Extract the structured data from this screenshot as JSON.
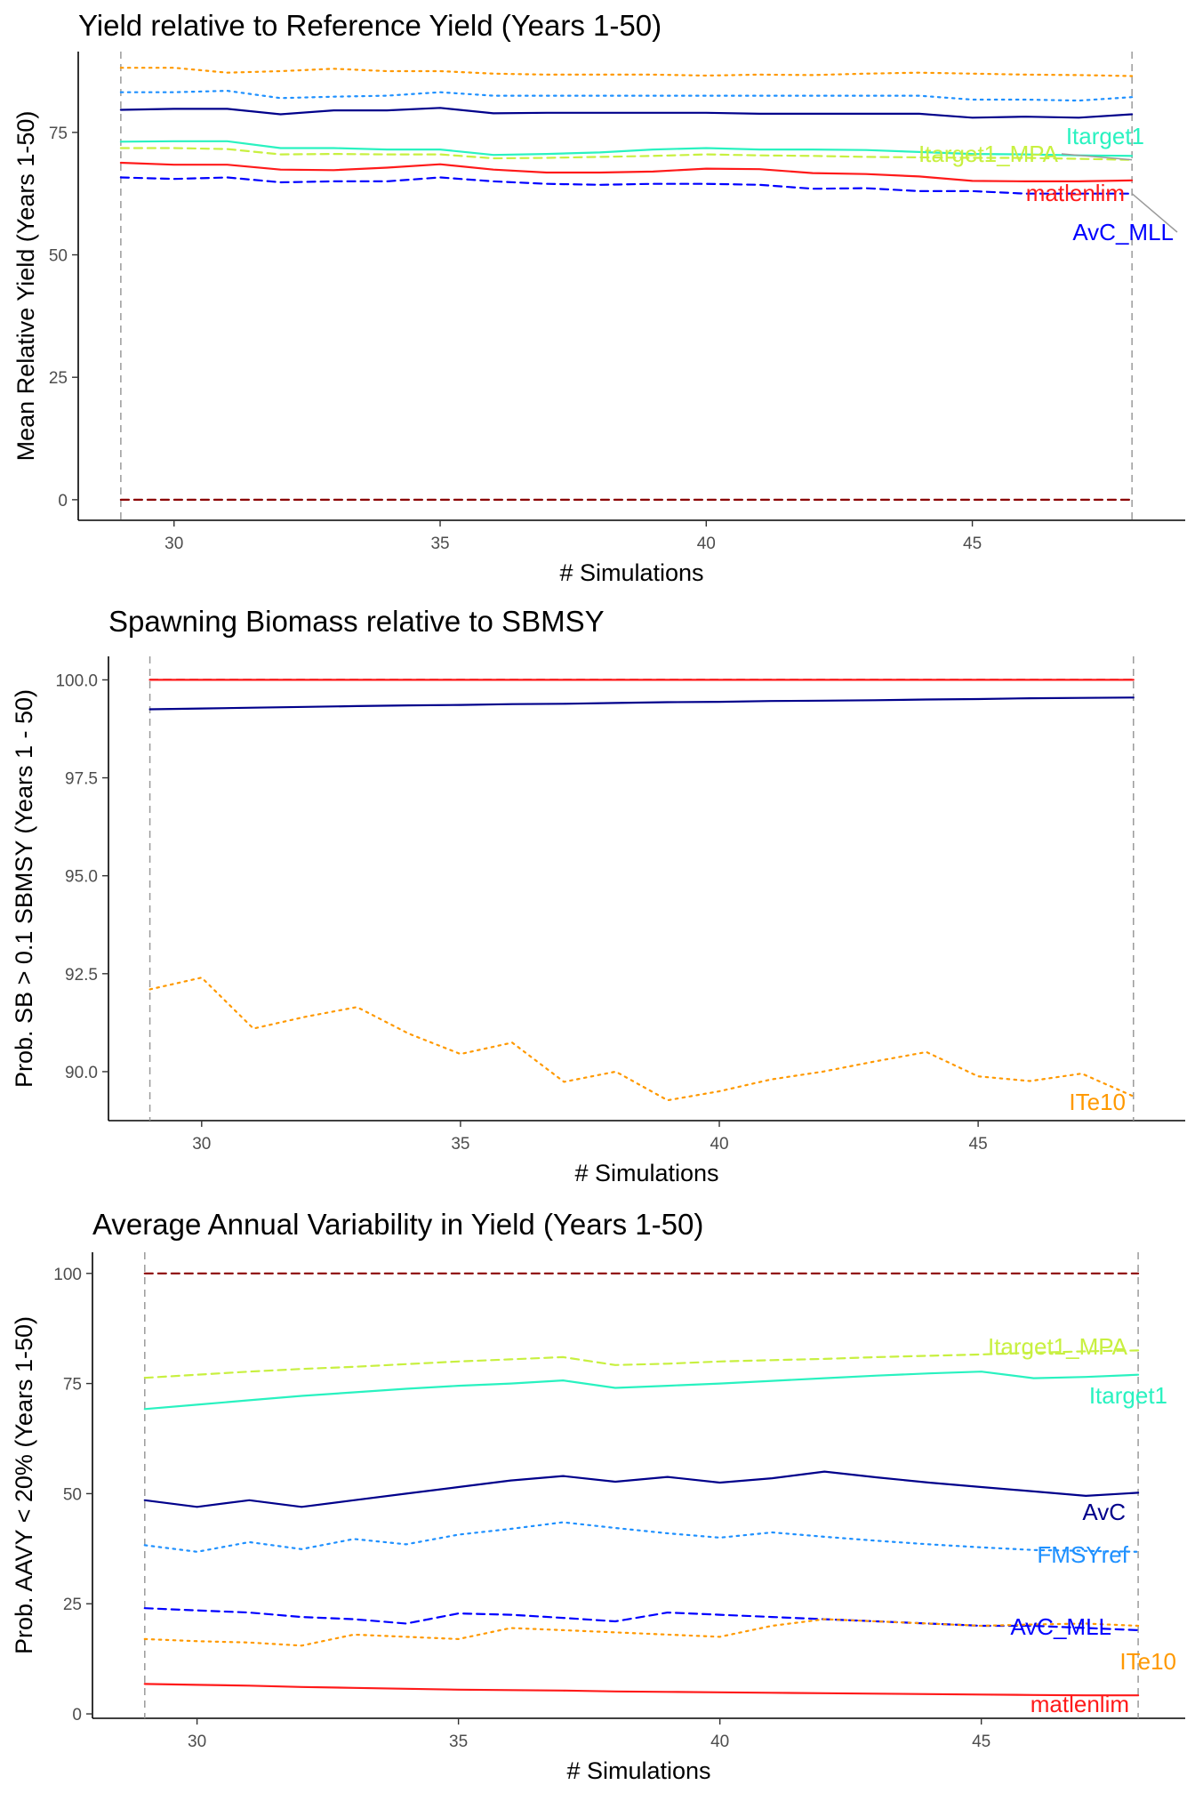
{
  "chart_data": [
    {
      "type": "line",
      "title": "Yield relative to Reference Yield (Years 1-50)",
      "xlabel": "# Simulations",
      "ylabel": "Mean Relative Yield (Years 1-50)",
      "xlim": [
        28.2,
        49.0
      ],
      "ylim": [
        -4.2,
        91.5
      ],
      "xticks": [
        30,
        35,
        40,
        45
      ],
      "yticks": [
        0,
        25,
        50,
        75
      ],
      "vlines": [
        29,
        48
      ],
      "grid": false,
      "legend": "none",
      "x": [
        29,
        30,
        31,
        32,
        33,
        34,
        35,
        36,
        37,
        38,
        39,
        40,
        41,
        42,
        43,
        44,
        45,
        46,
        47,
        48
      ],
      "series": [
        {
          "name": "",
          "color": "#ff9900",
          "dash": "dot",
          "values": [
            88.2,
            88.2,
            87.2,
            87.5,
            88.0,
            87.5,
            87.5,
            87.0,
            86.8,
            86.8,
            86.8,
            86.6,
            86.8,
            86.7,
            87.0,
            87.2,
            87.0,
            86.8,
            86.7,
            86.5
          ]
        },
        {
          "name": "",
          "color": "#1e90ff",
          "dash": "dot",
          "values": [
            83.2,
            83.2,
            83.5,
            82.0,
            82.3,
            82.5,
            83.2,
            82.5,
            82.5,
            82.5,
            82.5,
            82.5,
            82.5,
            82.5,
            82.5,
            82.5,
            81.7,
            81.7,
            81.5,
            82.2
          ]
        },
        {
          "name": "",
          "color": "#00008b",
          "dash": "solid",
          "values": [
            79.6,
            79.8,
            79.8,
            78.7,
            79.5,
            79.5,
            80.0,
            78.9,
            79.0,
            79.0,
            79.0,
            79.0,
            78.8,
            78.8,
            78.8,
            78.8,
            78.0,
            78.2,
            78.0,
            78.7
          ]
        },
        {
          "name": "Itarget1",
          "color": "#29f2c0",
          "dash": "solid",
          "values": [
            73.1,
            73.2,
            73.2,
            71.8,
            71.8,
            71.5,
            71.5,
            70.4,
            70.6,
            70.9,
            71.5,
            71.8,
            71.5,
            71.5,
            71.4,
            71.0,
            70.6,
            70.5,
            70.3,
            70.2
          ]
        },
        {
          "name": "Itarget1_MPA",
          "color": "#c8f040",
          "dash": "dash",
          "values": [
            71.8,
            71.8,
            71.6,
            70.5,
            70.6,
            70.5,
            70.5,
            69.7,
            69.8,
            70.0,
            70.2,
            70.5,
            70.3,
            70.2,
            70.0,
            69.9,
            69.8,
            69.8,
            69.6,
            69.4
          ]
        },
        {
          "name": "matlenlim",
          "color": "#ff1a1a",
          "dash": "solid",
          "values": [
            68.8,
            68.4,
            68.4,
            67.4,
            67.3,
            67.8,
            68.5,
            67.4,
            66.8,
            66.8,
            67.0,
            67.6,
            67.5,
            66.7,
            66.5,
            66.0,
            65.1,
            65.0,
            65.0,
            65.2
          ]
        },
        {
          "name": "AvC_MLL",
          "color": "#0000ff",
          "dash": "dash",
          "values": [
            65.8,
            65.5,
            65.8,
            64.8,
            65.0,
            65.0,
            65.8,
            65.0,
            64.5,
            64.3,
            64.5,
            64.5,
            64.3,
            63.5,
            63.6,
            63.0,
            63.0,
            62.5,
            62.5,
            62.5
          ]
        },
        {
          "name": "",
          "color": "#8b0000",
          "dash": "dash",
          "values": [
            0,
            0,
            0,
            0,
            0,
            0,
            0,
            0,
            0,
            0,
            0,
            0,
            0,
            0,
            0,
            0,
            0,
            0,
            0,
            0
          ]
        }
      ]
    },
    {
      "type": "line",
      "title": "Spawning Biomass relative to SBMSY",
      "xlabel": "# Simulations",
      "ylabel": "Prob. SB > 0.1 SBMSY (Years 1 - 50)",
      "xlim": [
        28.2,
        49.0
      ],
      "ylim": [
        88.75,
        100.6
      ],
      "xticks": [
        30,
        35,
        40,
        45
      ],
      "yticks": [
        90.0,
        92.5,
        95.0,
        97.5,
        100.0
      ],
      "tick_labels": [
        "90.0",
        "92.5",
        "95.0",
        "97.5",
        "100.0"
      ],
      "vlines": [
        29,
        48
      ],
      "grid": false,
      "legend": "none",
      "x": [
        29,
        30,
        31,
        32,
        33,
        34,
        35,
        36,
        37,
        38,
        39,
        40,
        41,
        42,
        43,
        44,
        45,
        46,
        47,
        48
      ],
      "series": [
        {
          "name": "",
          "color": "#8b0000",
          "dash": "dash",
          "values": [
            100,
            100,
            100,
            100,
            100,
            100,
            100,
            100,
            100,
            100,
            100,
            100,
            100,
            100,
            100,
            100,
            100,
            100,
            100,
            100
          ]
        },
        {
          "name": "",
          "color": "#ff1a1a",
          "dash": "solid",
          "values": [
            100,
            100,
            100,
            100,
            100,
            100,
            100,
            100,
            100,
            100,
            100,
            100,
            100,
            100,
            100,
            100,
            100,
            100,
            100,
            100
          ]
        },
        {
          "name": "",
          "color": "#00008b",
          "dash": "solid",
          "values": [
            99.25,
            99.27,
            99.29,
            99.31,
            99.33,
            99.35,
            99.36,
            99.38,
            99.39,
            99.41,
            99.43,
            99.44,
            99.46,
            99.47,
            99.48,
            99.5,
            99.51,
            99.53,
            99.54,
            99.55
          ]
        },
        {
          "name": "ITe10",
          "color": "#ff9900",
          "dash": "dot",
          "values": [
            92.1,
            92.4,
            91.1,
            91.4,
            91.65,
            90.97,
            90.45,
            90.74,
            89.74,
            90.0,
            89.27,
            89.5,
            89.8,
            90.0,
            90.26,
            90.5,
            89.88,
            89.76,
            89.95,
            89.37
          ]
        }
      ]
    },
    {
      "type": "line",
      "title": "Average Annual Variability in Yield (Years 1-50)",
      "xlabel": "# Simulations",
      "ylabel": "Prob. AAVY < 20% (Years 1-50)",
      "xlim": [
        28.0,
        48.9
      ],
      "ylim": [
        -1.0,
        104.8
      ],
      "xticks": [
        30,
        35,
        40,
        45
      ],
      "yticks": [
        0,
        25,
        50,
        75,
        100
      ],
      "vlines": [
        29,
        48
      ],
      "grid": false,
      "legend": "none",
      "x": [
        29,
        30,
        31,
        32,
        33,
        34,
        35,
        36,
        37,
        38,
        39,
        40,
        41,
        42,
        43,
        44,
        45,
        46,
        47,
        48
      ],
      "series": [
        {
          "name": "",
          "color": "#8b0000",
          "dash": "dash",
          "values": [
            100,
            100,
            100,
            100,
            100,
            100,
            100,
            100,
            100,
            100,
            100,
            100,
            100,
            100,
            100,
            100,
            100,
            100,
            100,
            100
          ]
        },
        {
          "name": "Itarget1_MPA",
          "color": "#c8f040",
          "dash": "dash",
          "values": [
            76.3,
            77.0,
            77.7,
            78.3,
            78.8,
            79.4,
            80.0,
            80.5,
            81.0,
            79.2,
            79.5,
            80.0,
            80.3,
            80.6,
            81.0,
            81.3,
            81.6,
            82.0,
            82.3,
            82.5
          ]
        },
        {
          "name": "Itarget1",
          "color": "#29f2c0",
          "dash": "solid",
          "values": [
            69.2,
            70.2,
            71.2,
            72.2,
            73.0,
            73.8,
            74.5,
            75.0,
            75.7,
            74.0,
            74.5,
            75.0,
            75.6,
            76.2,
            76.8,
            77.3,
            77.7,
            76.2,
            76.5,
            77.0
          ]
        },
        {
          "name": "AvC",
          "color": "#00008b",
          "dash": "solid",
          "values": [
            48.5,
            47.0,
            48.5,
            47.0,
            48.5,
            50.0,
            51.5,
            53.0,
            54.0,
            52.7,
            53.8,
            52.5,
            53.5,
            55.0,
            53.7,
            52.5,
            51.5,
            50.5,
            49.5,
            50.2
          ]
        },
        {
          "name": "FMSYref",
          "color": "#1e90ff",
          "dash": "dot",
          "values": [
            38.3,
            36.8,
            39.0,
            37.4,
            39.7,
            38.5,
            40.7,
            42.0,
            43.5,
            42.2,
            41.0,
            40.0,
            41.2,
            40.2,
            39.3,
            38.5,
            37.8,
            37.2,
            37.0,
            36.8
          ]
        },
        {
          "name": "AvC_MLL",
          "color": "#0000ff",
          "dash": "dash",
          "values": [
            24.0,
            23.5,
            23.0,
            22.0,
            21.5,
            20.5,
            22.8,
            22.5,
            21.8,
            21.0,
            23.0,
            22.5,
            22.0,
            21.5,
            21.0,
            20.5,
            20.0,
            20.0,
            19.5,
            19.0
          ]
        },
        {
          "name": "ITe10",
          "color": "#ff9900",
          "dash": "dot",
          "values": [
            17.0,
            16.5,
            16.2,
            15.5,
            18.0,
            17.5,
            17.0,
            19.5,
            19.0,
            18.5,
            18.0,
            17.5,
            20.0,
            21.5,
            21.0,
            20.5,
            20.0,
            20.3,
            20.5,
            20.0
          ]
        },
        {
          "name": "matlenlim",
          "color": "#ff1a1a",
          "dash": "solid",
          "values": [
            6.8,
            6.6,
            6.4,
            6.1,
            5.9,
            5.7,
            5.5,
            5.4,
            5.3,
            5.1,
            5.0,
            4.9,
            4.8,
            4.7,
            4.6,
            4.5,
            4.4,
            4.3,
            4.2,
            4.2
          ]
        }
      ]
    }
  ]
}
